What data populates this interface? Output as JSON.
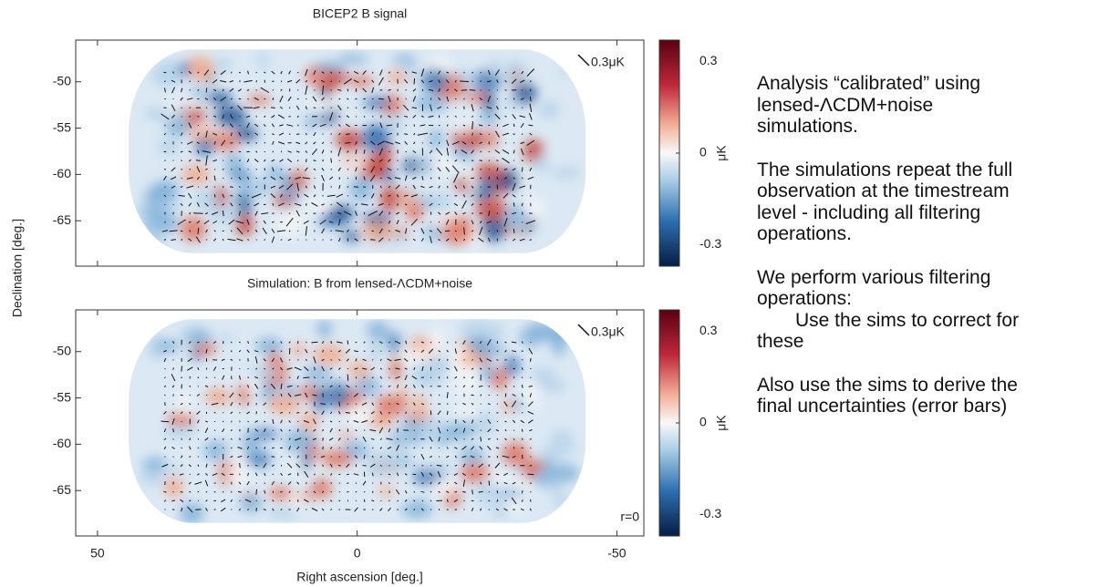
{
  "chart_data": [
    {
      "type": "map",
      "title": "BICEP2 B signal",
      "xlim": [
        54.2,
        -55.2
      ],
      "xticks": [
        50,
        0,
        -50
      ],
      "xtick_labels": false,
      "ylim": [
        -69.9,
        -45.5
      ],
      "yticks": [
        -50,
        -55,
        -60,
        -65
      ],
      "colorbar": {
        "lim": [
          -0.37,
          0.37
        ],
        "ticks": [
          0.3,
          0,
          -0.3
        ],
        "label": "μK"
      },
      "scale_label": "0.3μK"
    },
    {
      "type": "map",
      "title": "Simulation: B from lensed-ΛCDM+noise",
      "xlim": [
        54.2,
        -55.2
      ],
      "xticks": [
        50,
        0,
        -50
      ],
      "xtick_labels": true,
      "ylim": [
        -69.9,
        -45.5
      ],
      "yticks": [
        -50,
        -55,
        -60,
        -65
      ],
      "xlabel": "Right ascension [deg.]",
      "ylabel": "Declination [deg.]",
      "colorbar": {
        "lim": [
          -0.37,
          0.37
        ],
        "ticks": [
          0.3,
          0,
          -0.3
        ],
        "label": "μK"
      },
      "scale_label": "0.3μK",
      "annotation": "r=0"
    }
  ],
  "text": {
    "paragraphs": [
      [
        "Analysis “calibrated” using",
        "lensed-ΛCDM+noise",
        "simulations."
      ],
      [
        "The simulations repeat the full",
        "observation at the timestream",
        "level - including all filtering",
        "operations."
      ],
      [
        "We perform various filtering",
        "operations:",
        "Use the sims to correct for",
        "these"
      ],
      [
        "Also use the sims to derive the",
        "final uncertainties (error bars)"
      ]
    ]
  }
}
